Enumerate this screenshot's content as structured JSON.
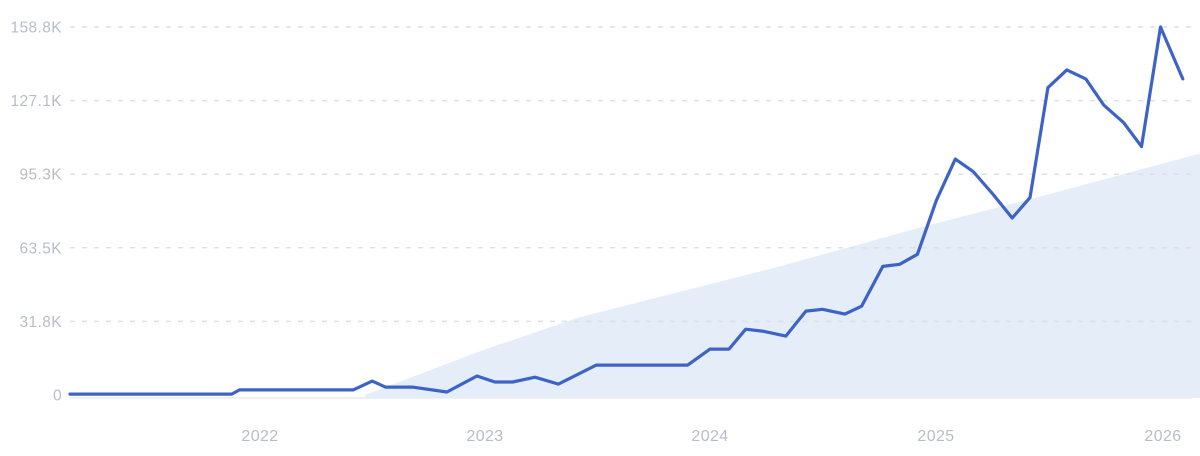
{
  "chart_data": {
    "type": "line",
    "grid": true,
    "legend": "none",
    "colors": {
      "line": "#3e63c6",
      "area_fill": "#e5edf8",
      "grid_dash": "#dce0e7",
      "baseline": "#e9ecf2",
      "axis_label": "#b7bdc8",
      "background": "#ffffff"
    },
    "y_axis": {
      "max_value": 158800,
      "ticks": [
        {
          "label": "0",
          "value": 0
        },
        {
          "label": "31.8K",
          "value": 31760
        },
        {
          "label": "63.5K",
          "value": 63520
        },
        {
          "label": "95.3K",
          "value": 95280
        },
        {
          "label": "127.1K",
          "value": 127040
        },
        {
          "label": "158.8K",
          "value": 158800
        }
      ]
    },
    "x_axis": {
      "ticks": [
        {
          "label": "2022",
          "pos": 0.1704
        },
        {
          "label": "2023",
          "pos": 0.3722
        },
        {
          "label": "2024",
          "pos": 0.574
        },
        {
          "label": "2025",
          "pos": 0.7767
        },
        {
          "label": "2026",
          "pos": 0.9803
        }
      ]
    },
    "series": [
      {
        "name": "trend-area",
        "type": "area",
        "fill": "#e5edf8",
        "points": [
          [
            0.2646,
            0
          ],
          [
            0.3677,
            18900
          ],
          [
            0.4574,
            33600
          ],
          [
            0.6368,
            55500
          ],
          [
            0.7623,
            72300
          ],
          [
            0.87,
            85600
          ],
          [
            1.0134,
            104200
          ]
        ]
      },
      {
        "name": "main-series",
        "type": "line",
        "color": "#3e63c6",
        "stroke_width": 3.2,
        "points": [
          [
            0.0,
            400
          ],
          [
            0.145,
            400
          ],
          [
            0.152,
            2200
          ],
          [
            0.254,
            2200
          ],
          [
            0.271,
            6000
          ],
          [
            0.283,
            3400
          ],
          [
            0.307,
            3400
          ],
          [
            0.338,
            1300
          ],
          [
            0.365,
            8200
          ],
          [
            0.381,
            5600
          ],
          [
            0.397,
            5600
          ],
          [
            0.417,
            7700
          ],
          [
            0.438,
            4700
          ],
          [
            0.472,
            12900
          ],
          [
            0.554,
            12900
          ],
          [
            0.574,
            19800
          ],
          [
            0.591,
            19800
          ],
          [
            0.606,
            28400
          ],
          [
            0.622,
            27500
          ],
          [
            0.642,
            25400
          ],
          [
            0.66,
            36200
          ],
          [
            0.675,
            37000
          ],
          [
            0.695,
            34900
          ],
          [
            0.71,
            38300
          ],
          [
            0.729,
            55500
          ],
          [
            0.744,
            56400
          ],
          [
            0.76,
            60700
          ],
          [
            0.777,
            84000
          ],
          [
            0.794,
            101800
          ],
          [
            0.81,
            96400
          ],
          [
            0.828,
            86500
          ],
          [
            0.845,
            76400
          ],
          [
            0.861,
            85200
          ],
          [
            0.877,
            132600
          ],
          [
            0.894,
            140300
          ],
          [
            0.911,
            136400
          ],
          [
            0.927,
            125200
          ],
          [
            0.945,
            117500
          ],
          [
            0.961,
            107200
          ],
          [
            0.978,
            158800
          ],
          [
            0.998,
            136400
          ]
        ]
      }
    ]
  }
}
